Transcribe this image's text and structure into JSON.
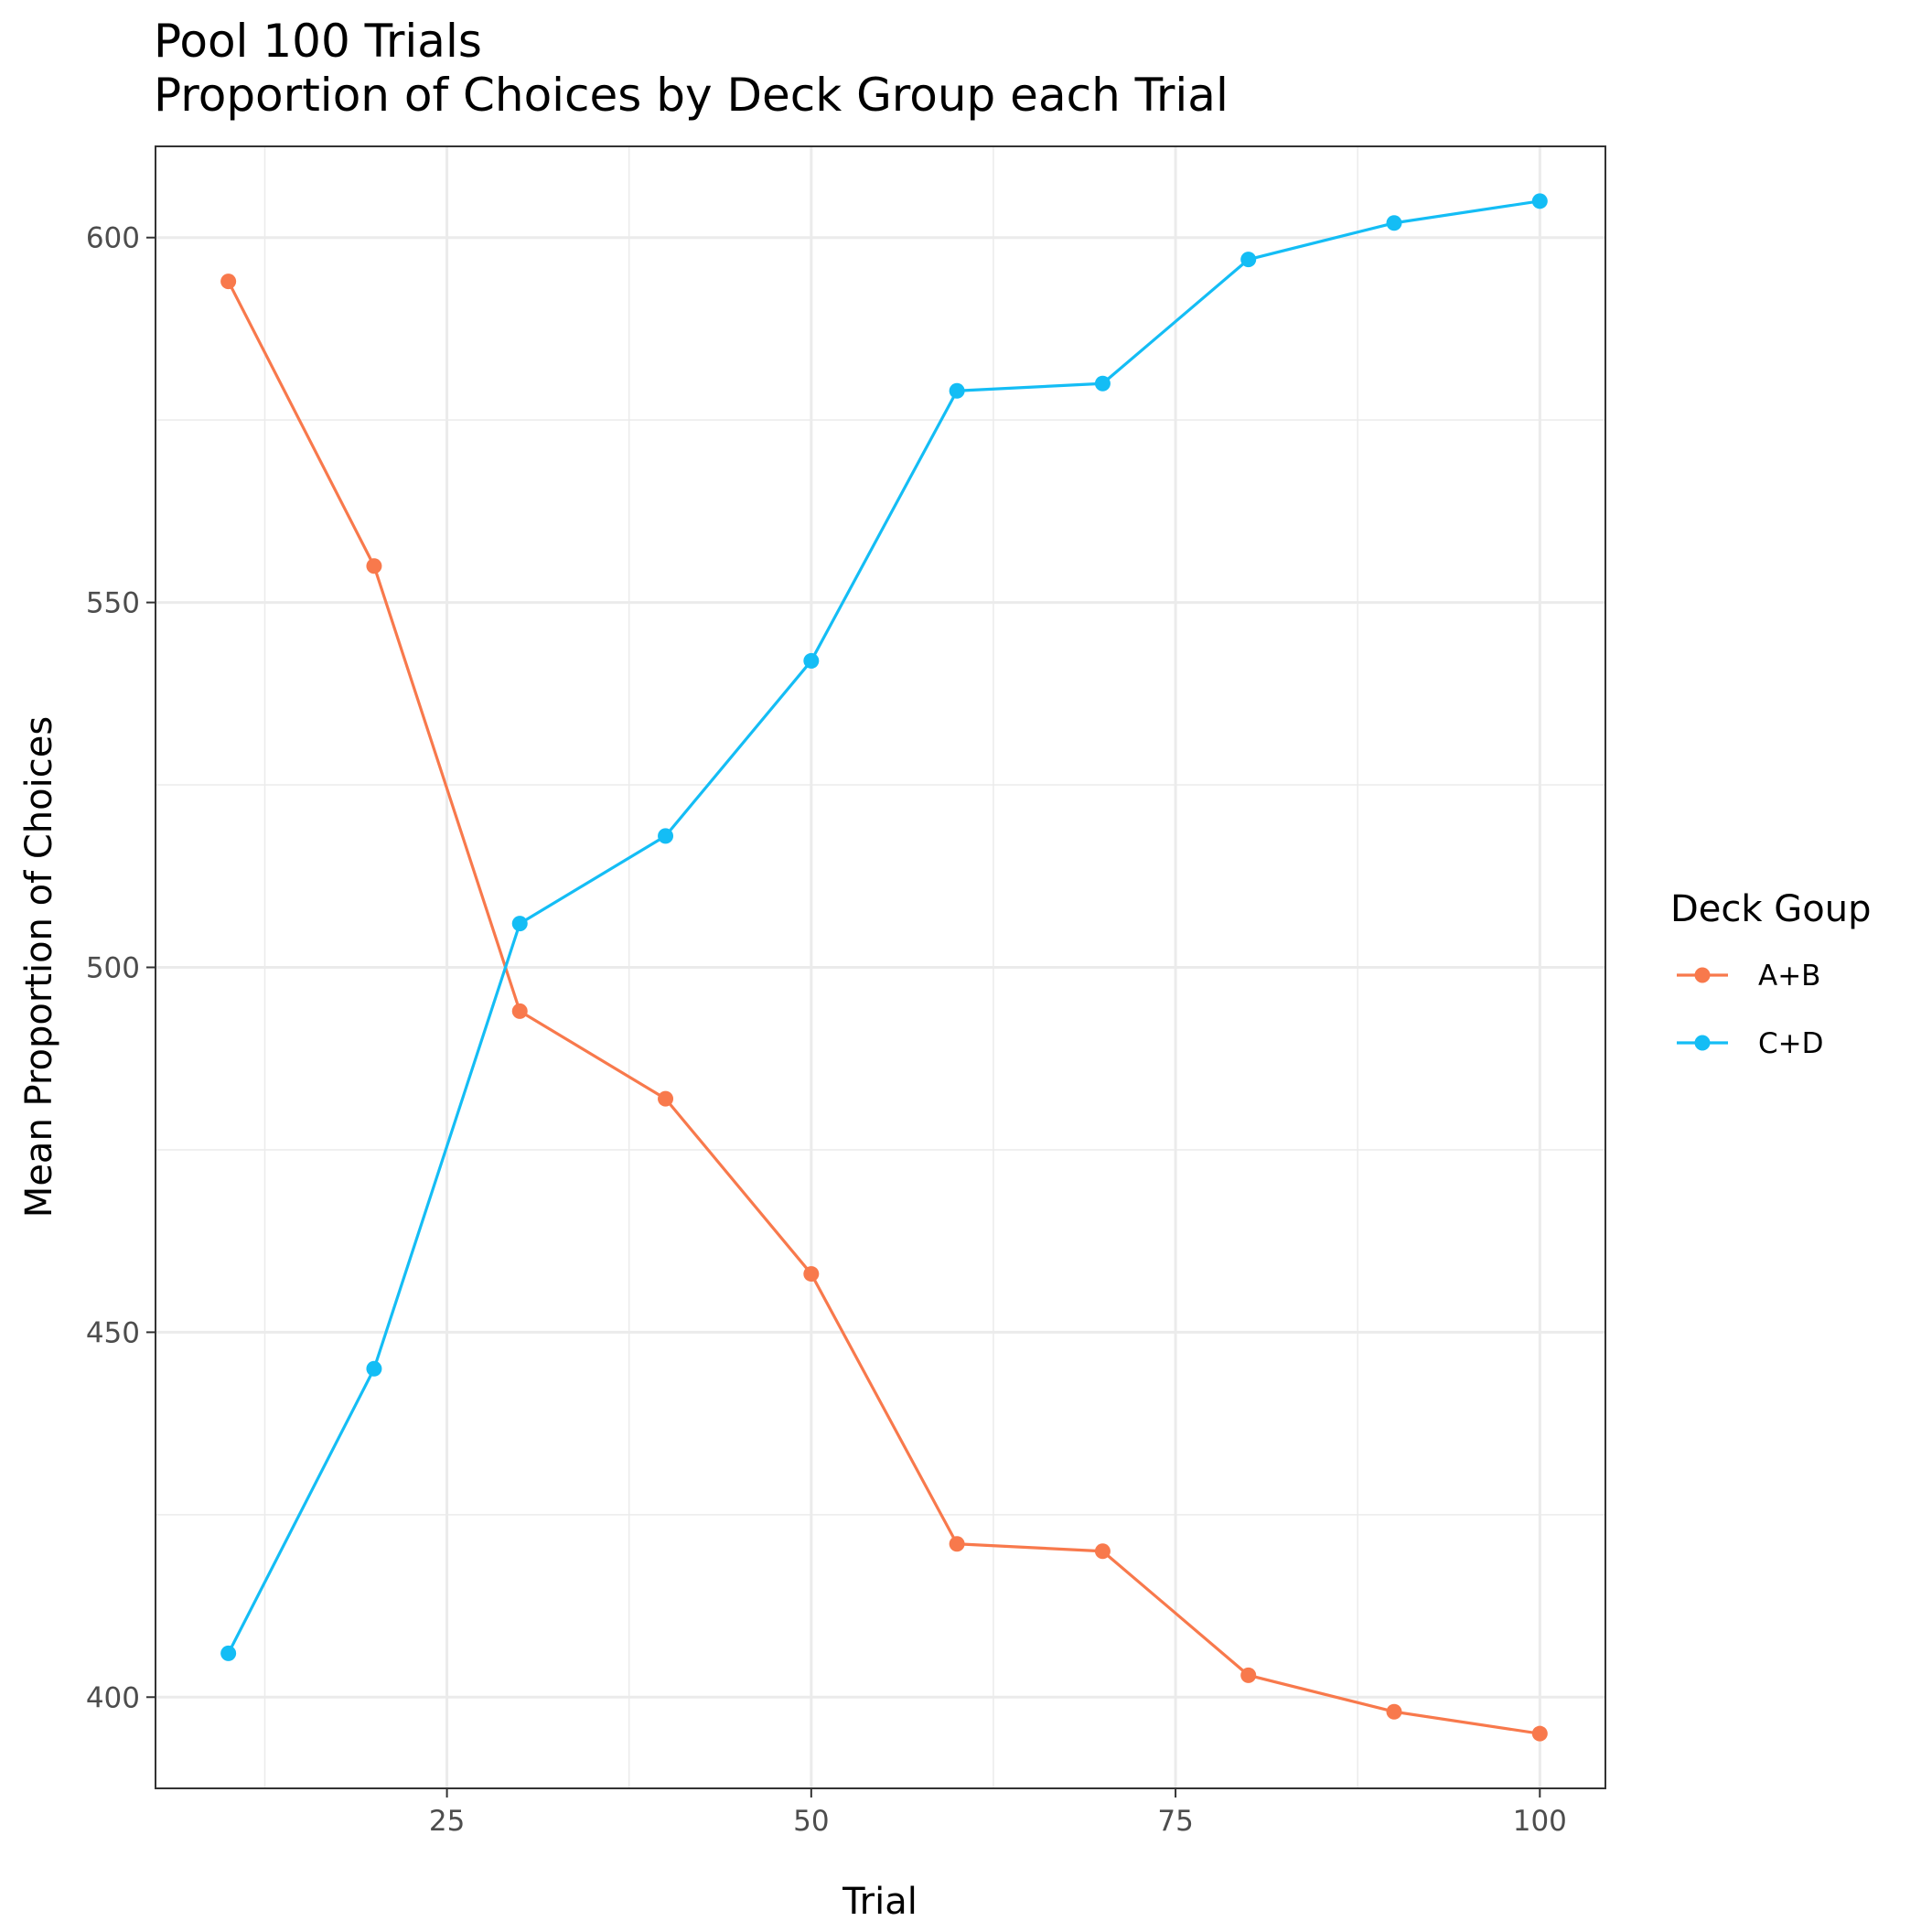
{
  "chart_data": {
    "type": "line",
    "title": "Pool 100 Trials",
    "subtitle": "Proportion of Choices by Deck Group each Trial",
    "xlabel": "Trial",
    "ylabel": "Mean Proportion of Choices",
    "x": [
      10,
      20,
      30,
      40,
      50,
      60,
      70,
      80,
      90,
      100
    ],
    "xlim": [
      5,
      104.5
    ],
    "ylim": [
      387.5,
      612.5
    ],
    "x_ticks": [
      25,
      50,
      75,
      100
    ],
    "y_ticks": [
      400,
      450,
      500,
      550,
      600
    ],
    "grid": true,
    "legend": {
      "title": "Deck Goup",
      "position": "right"
    },
    "series": [
      {
        "name": "A+B",
        "color": "#F8794C",
        "values": [
          594,
          555,
          494,
          482,
          458,
          421,
          420,
          403,
          398,
          395
        ]
      },
      {
        "name": "C+D",
        "color": "#14BDF5",
        "values": [
          406,
          445,
          506,
          518,
          542,
          579,
          580,
          597,
          602,
          605
        ]
      }
    ]
  }
}
